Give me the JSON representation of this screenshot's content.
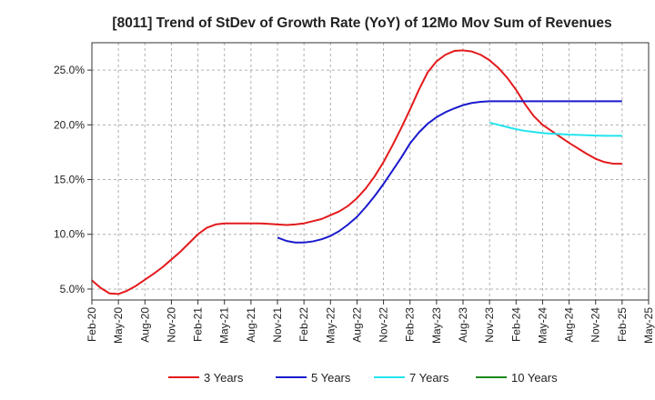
{
  "chart_data": {
    "type": "line",
    "title": "[8011]  Trend of StDev of Growth Rate (YoY) of 12Mo Mov Sum of Revenues",
    "xlabel": "",
    "ylabel": "",
    "ylim": [
      4.0,
      27.5
    ],
    "grid": true,
    "legend_position": "bottom",
    "x_tick_labels": [
      "Feb-20",
      "May-20",
      "Aug-20",
      "Nov-20",
      "Feb-21",
      "May-21",
      "Aug-21",
      "Nov-21",
      "Feb-22",
      "May-22",
      "Aug-22",
      "Nov-22",
      "Feb-23",
      "May-23",
      "Aug-23",
      "Nov-23",
      "Feb-24",
      "May-24",
      "Aug-24",
      "Nov-24",
      "Feb-25",
      "May-25"
    ],
    "y_ticks": [
      5.0,
      10.0,
      15.0,
      20.0,
      25.0
    ],
    "y_tick_labels": [
      "5.0%",
      "10.0%",
      "15.0%",
      "20.0%",
      "25.0%"
    ],
    "x_start_month": 0,
    "series": [
      {
        "name": "3 Years",
        "color": "#e31a1c",
        "start_month": 0,
        "values": [
          5.8,
          5.1,
          4.6,
          4.55,
          4.85,
          5.3,
          5.85,
          6.4,
          7.0,
          7.7,
          8.4,
          9.2,
          10.0,
          10.6,
          10.9,
          11.0,
          11.0,
          11.0,
          11.0,
          11.0,
          10.95,
          10.9,
          10.85,
          10.9,
          11.0,
          11.2,
          11.4,
          11.75,
          12.1,
          12.6,
          13.3,
          14.2,
          15.3,
          16.6,
          18.1,
          19.7,
          21.4,
          23.2,
          24.8,
          25.8,
          26.4,
          26.75,
          26.8,
          26.7,
          26.4,
          25.9,
          25.2,
          24.3,
          23.2,
          21.9,
          20.8,
          20.0,
          19.45,
          18.9,
          18.35,
          17.85,
          17.35,
          16.9,
          16.6,
          16.45,
          16.45
        ]
      },
      {
        "name": "5 Years",
        "color": "#1a1acd",
        "start_month": 21,
        "values": [
          9.7,
          9.4,
          9.25,
          9.25,
          9.35,
          9.55,
          9.85,
          10.3,
          10.9,
          11.6,
          12.5,
          13.5,
          14.6,
          15.8,
          17.0,
          18.3,
          19.3,
          20.1,
          20.7,
          21.15,
          21.5,
          21.8,
          22.0,
          22.1,
          22.15,
          22.15,
          22.15,
          22.15,
          22.15,
          22.15,
          22.15,
          22.15,
          22.15,
          22.15,
          22.15,
          22.15,
          22.15,
          22.15,
          22.15,
          22.15
        ]
      },
      {
        "name": "7 Years",
        "color": "#22e4ee",
        "start_month": 45,
        "values": [
          20.2,
          20.0,
          19.8,
          19.6,
          19.45,
          19.35,
          19.25,
          19.2,
          19.15,
          19.1,
          19.08,
          19.05,
          19.02,
          19.0,
          19.0,
          19.0
        ]
      },
      {
        "name": "10 Years",
        "color": "#1a8a1a",
        "start_month": 60,
        "values": []
      }
    ]
  }
}
